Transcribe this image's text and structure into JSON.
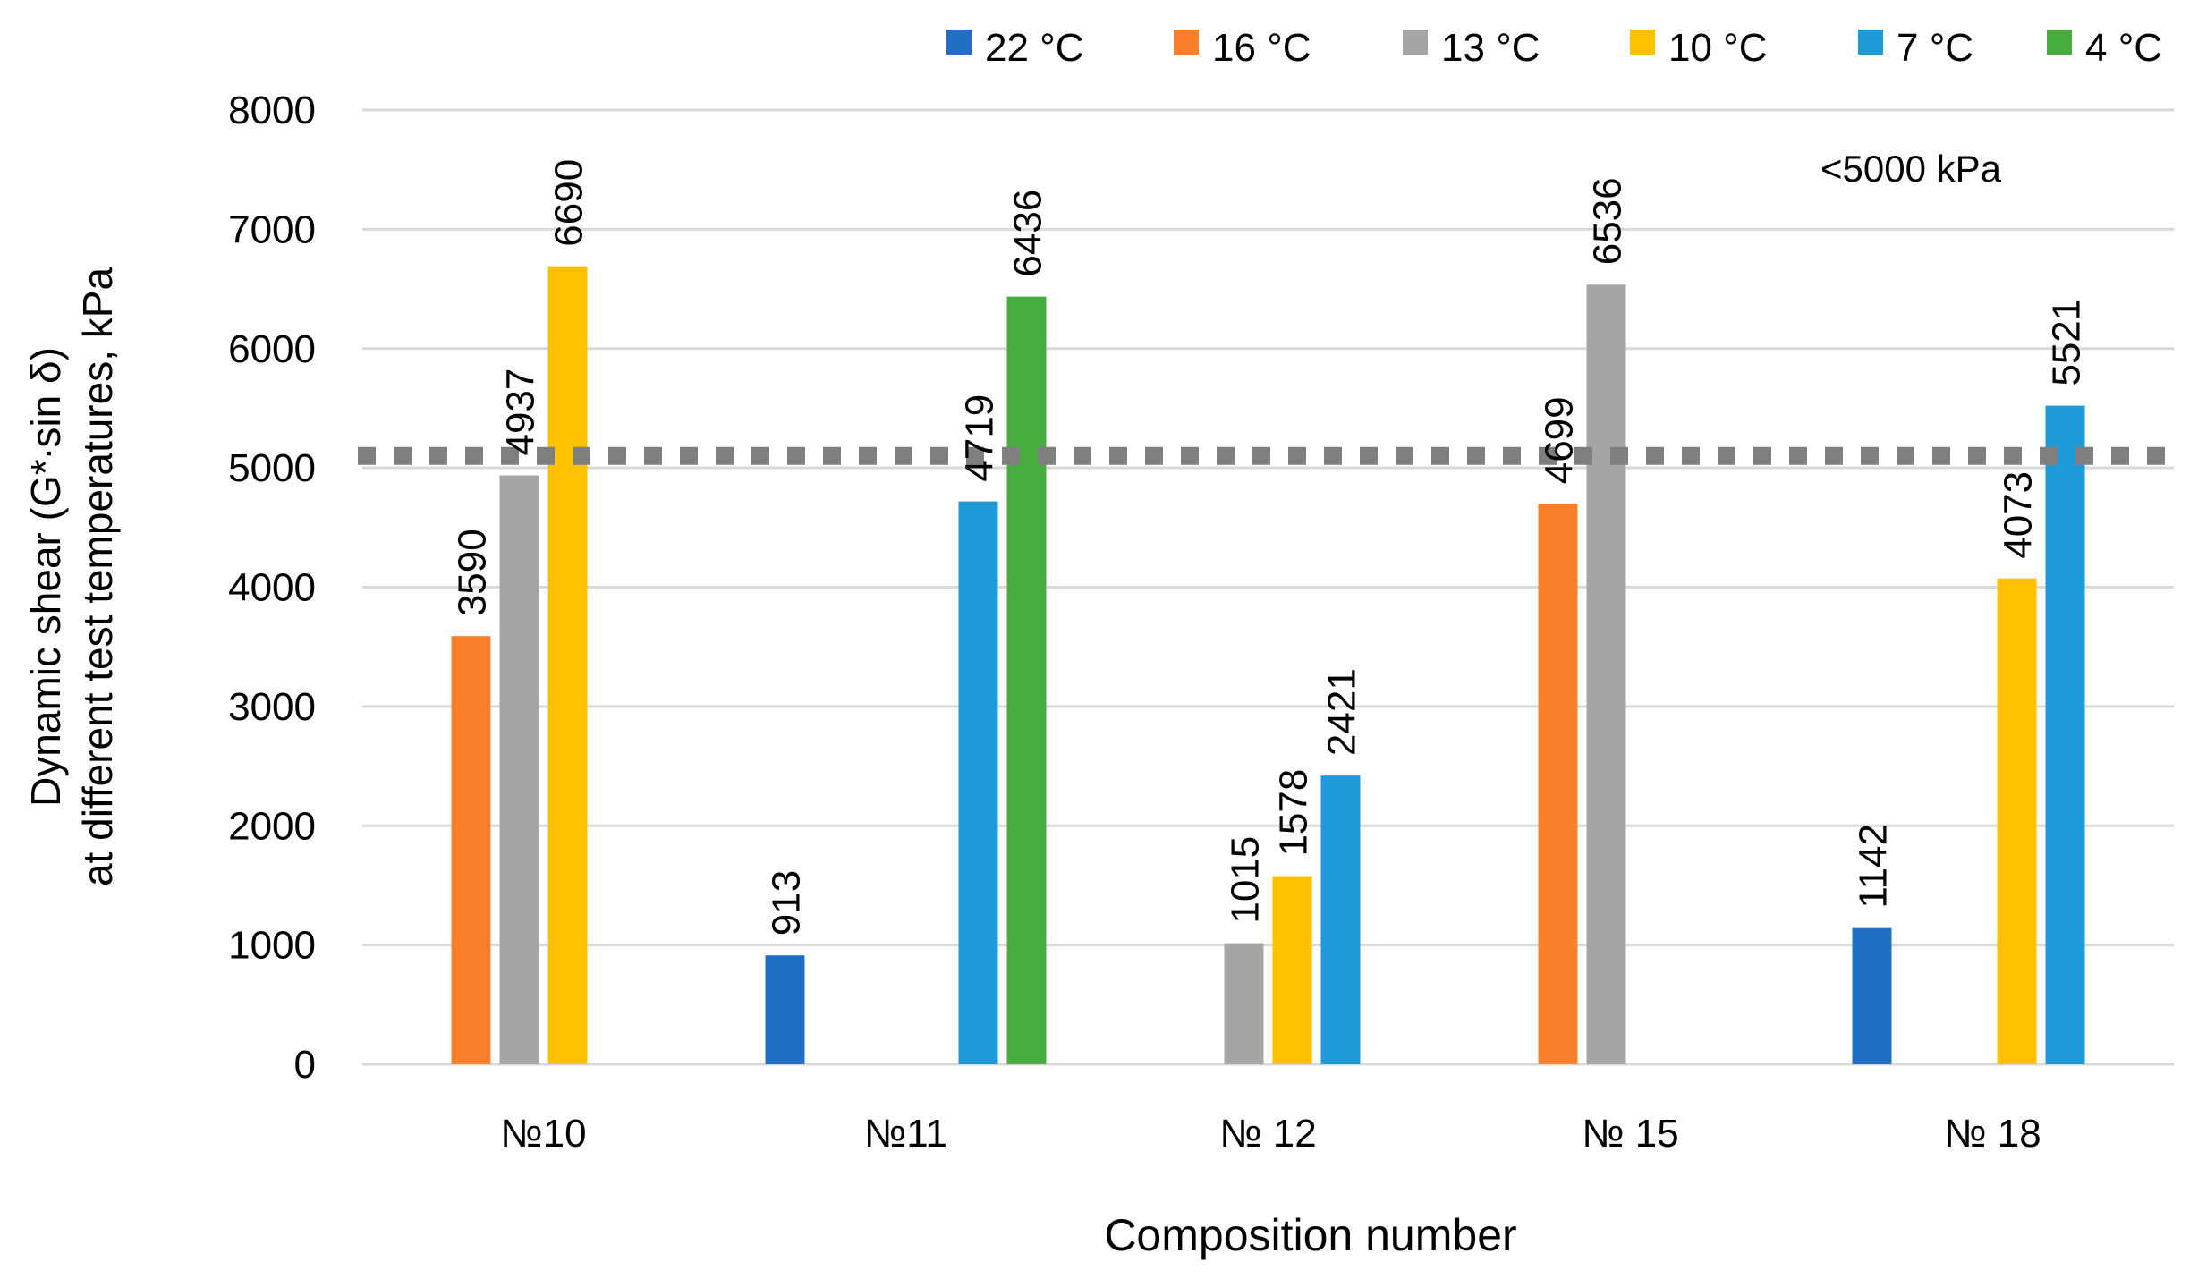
{
  "chart_data": {
    "type": "bar",
    "title": "",
    "xlabel": "Composition number",
    "ylabel_line1": "Dynamic shear (G*∙sin δ)",
    "ylabel_line2": "at different test temperatures, kPa",
    "ylim": [
      0,
      8000
    ],
    "yticks": [
      0,
      1000,
      2000,
      3000,
      4000,
      5000,
      6000,
      7000,
      8000
    ],
    "grid": true,
    "legend_position": "top",
    "categories": [
      "№10",
      "№11",
      "№ 12",
      "№ 15",
      "№ 18"
    ],
    "series": [
      {
        "name": "22 °C",
        "color": "#1f6fc6",
        "values": [
          null,
          913,
          null,
          null,
          1142
        ]
      },
      {
        "name": "16 °C",
        "color": "#f8802a",
        "values": [
          3590,
          null,
          null,
          4699,
          null
        ]
      },
      {
        "name": "13 °C",
        "color": "#a5a5a5",
        "values": [
          4937,
          null,
          1015,
          6536,
          null
        ]
      },
      {
        "name": "10 °C",
        "color": "#ffc000",
        "values": [
          6690,
          null,
          1578,
          null,
          4073
        ]
      },
      {
        "name": "7 °C",
        "color": "#1e9ad8",
        "values": [
          null,
          4719,
          2421,
          null,
          5521
        ]
      },
      {
        "name": "4 °C",
        "color": "#46ad3e",
        "values": [
          null,
          6436,
          null,
          null,
          null
        ]
      }
    ],
    "threshold": {
      "value": 5100,
      "label": "<5000 kPa",
      "color": "#7f7f7f"
    }
  }
}
